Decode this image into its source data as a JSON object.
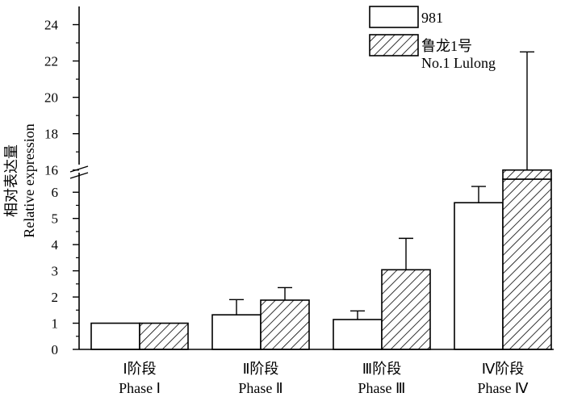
{
  "chart_data": {
    "type": "bar",
    "ylabel": [
      "相对表达量",
      "Relative expression"
    ],
    "categories": [
      [
        "Ⅰ阶段",
        "Phase Ⅰ"
      ],
      [
        "Ⅱ阶段",
        "Phase Ⅱ"
      ],
      [
        "Ⅲ阶段",
        "Phase Ⅲ"
      ],
      [
        "Ⅳ阶段",
        "Phase Ⅳ"
      ]
    ],
    "series": [
      {
        "name": [
          "981"
        ],
        "pattern": "none",
        "values": [
          1.0,
          1.32,
          1.14,
          5.6
        ],
        "errors": [
          0,
          0.58,
          0.33,
          0.62
        ]
      },
      {
        "name": [
          "鲁龙1号",
          "No.1 Lulong"
        ],
        "pattern": "hatch",
        "values": [
          1.0,
          1.88,
          3.04,
          16.0
        ],
        "errors": [
          0,
          0.48,
          1.2,
          6.5
        ]
      }
    ],
    "y_axis": {
      "broken": true,
      "lower_range": [
        0,
        6.5
      ],
      "upper_range": [
        15.5,
        25
      ],
      "lower_ticks": [
        "0",
        "1",
        "2",
        "3",
        "4",
        "5",
        "6"
      ],
      "upper_ticks": [
        "16",
        "18",
        "20",
        "22",
        "24"
      ]
    },
    "legend_position": "top-right",
    "grid": false,
    "colors": {
      "bar_fill": "#ffffff",
      "stroke": "#000000",
      "hatch": "#000000"
    }
  }
}
